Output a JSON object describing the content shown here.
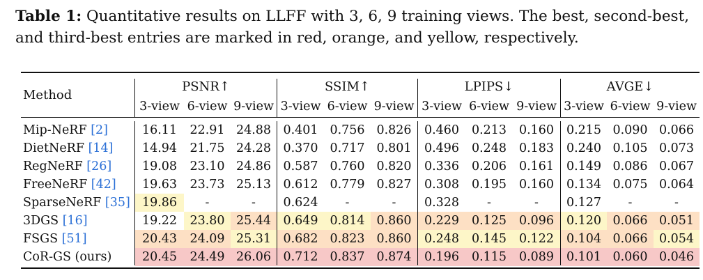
{
  "caption": {
    "label": "Table 1:",
    "text": " Quantitative results on LLFF with 3, 6, 9 training views. The best, second-best, and third-best entries are marked in red, orange, and yellow, respectively."
  },
  "table": {
    "method_header": "Method",
    "metric_groups": [
      "PSNR↑",
      "SSIM↑",
      "LPIPS↓",
      "AVGE↓"
    ],
    "view_labels": [
      "3-view",
      "6-view",
      "9-view"
    ],
    "colors": {
      "red": "#f7c8c7",
      "orange": "#fde0c4",
      "yellow": "#fdf6c8",
      "ref": "#2a6fd6"
    },
    "rows": [
      {
        "method": "Mip-NeRF ",
        "ref": "[2]",
        "values": [
          "16.11",
          "22.91",
          "24.88",
          "0.401",
          "0.756",
          "0.826",
          "0.460",
          "0.213",
          "0.160",
          "0.215",
          "0.090",
          "0.066"
        ],
        "highlight": [
          "",
          "",
          "",
          "",
          "",
          "",
          "",
          "",
          "",
          "",
          "",
          ""
        ]
      },
      {
        "method": "DietNeRF ",
        "ref": "[14]",
        "values": [
          "14.94",
          "21.75",
          "24.28",
          "0.370",
          "0.717",
          "0.801",
          "0.496",
          "0.248",
          "0.183",
          "0.240",
          "0.105",
          "0.073"
        ],
        "highlight": [
          "",
          "",
          "",
          "",
          "",
          "",
          "",
          "",
          "",
          "",
          "",
          ""
        ]
      },
      {
        "method": "RegNeRF ",
        "ref": "[26]",
        "values": [
          "19.08",
          "23.10",
          "24.86",
          "0.587",
          "0.760",
          "0.820",
          "0.336",
          "0.206",
          "0.161",
          "0.149",
          "0.086",
          "0.067"
        ],
        "highlight": [
          "",
          "",
          "",
          "",
          "",
          "",
          "",
          "",
          "",
          "",
          "",
          ""
        ]
      },
      {
        "method": "FreeNeRF ",
        "ref": "[42]",
        "values": [
          "19.63",
          "23.73",
          "25.13",
          "0.612",
          "0.779",
          "0.827",
          "0.308",
          "0.195",
          "0.160",
          "0.134",
          "0.075",
          "0.064"
        ],
        "highlight": [
          "",
          "",
          "",
          "",
          "",
          "",
          "",
          "",
          "",
          "",
          "",
          ""
        ]
      },
      {
        "method": "SparseNeRF ",
        "ref": "[35]",
        "values": [
          "19.86",
          "-",
          "-",
          "0.624",
          "-",
          "-",
          "0.328",
          "-",
          "-",
          "0.127",
          "-",
          "-"
        ],
        "highlight": [
          "yellow",
          "",
          "",
          "",
          "",
          "",
          "",
          "",
          "",
          "",
          "",
          ""
        ]
      },
      {
        "method": "3DGS ",
        "ref": "[16]",
        "values": [
          "19.22",
          "23.80",
          "25.44",
          "0.649",
          "0.814",
          "0.860",
          "0.229",
          "0.125",
          "0.096",
          "0.120",
          "0.066",
          "0.051"
        ],
        "highlight": [
          "",
          "yellow",
          "orange",
          "yellow",
          "yellow",
          "orange",
          "orange",
          "orange",
          "orange",
          "yellow",
          "orange",
          "orange"
        ]
      },
      {
        "method": "FSGS ",
        "ref": "[51]",
        "values": [
          "20.43",
          "24.09",
          "25.31",
          "0.682",
          "0.823",
          "0.860",
          "0.248",
          "0.145",
          "0.122",
          "0.104",
          "0.066",
          "0.054"
        ],
        "highlight": [
          "orange",
          "orange",
          "yellow",
          "orange",
          "orange",
          "orange",
          "yellow",
          "yellow",
          "yellow",
          "orange",
          "orange",
          "yellow"
        ]
      },
      {
        "method": "CoR-GS (ours)",
        "ref": "",
        "values": [
          "20.45",
          "24.49",
          "26.06",
          "0.712",
          "0.837",
          "0.874",
          "0.196",
          "0.115",
          "0.089",
          "0.101",
          "0.060",
          "0.046"
        ],
        "highlight": [
          "red",
          "red",
          "red",
          "red",
          "red",
          "red",
          "red",
          "red",
          "red",
          "red",
          "red",
          "red"
        ]
      }
    ]
  }
}
